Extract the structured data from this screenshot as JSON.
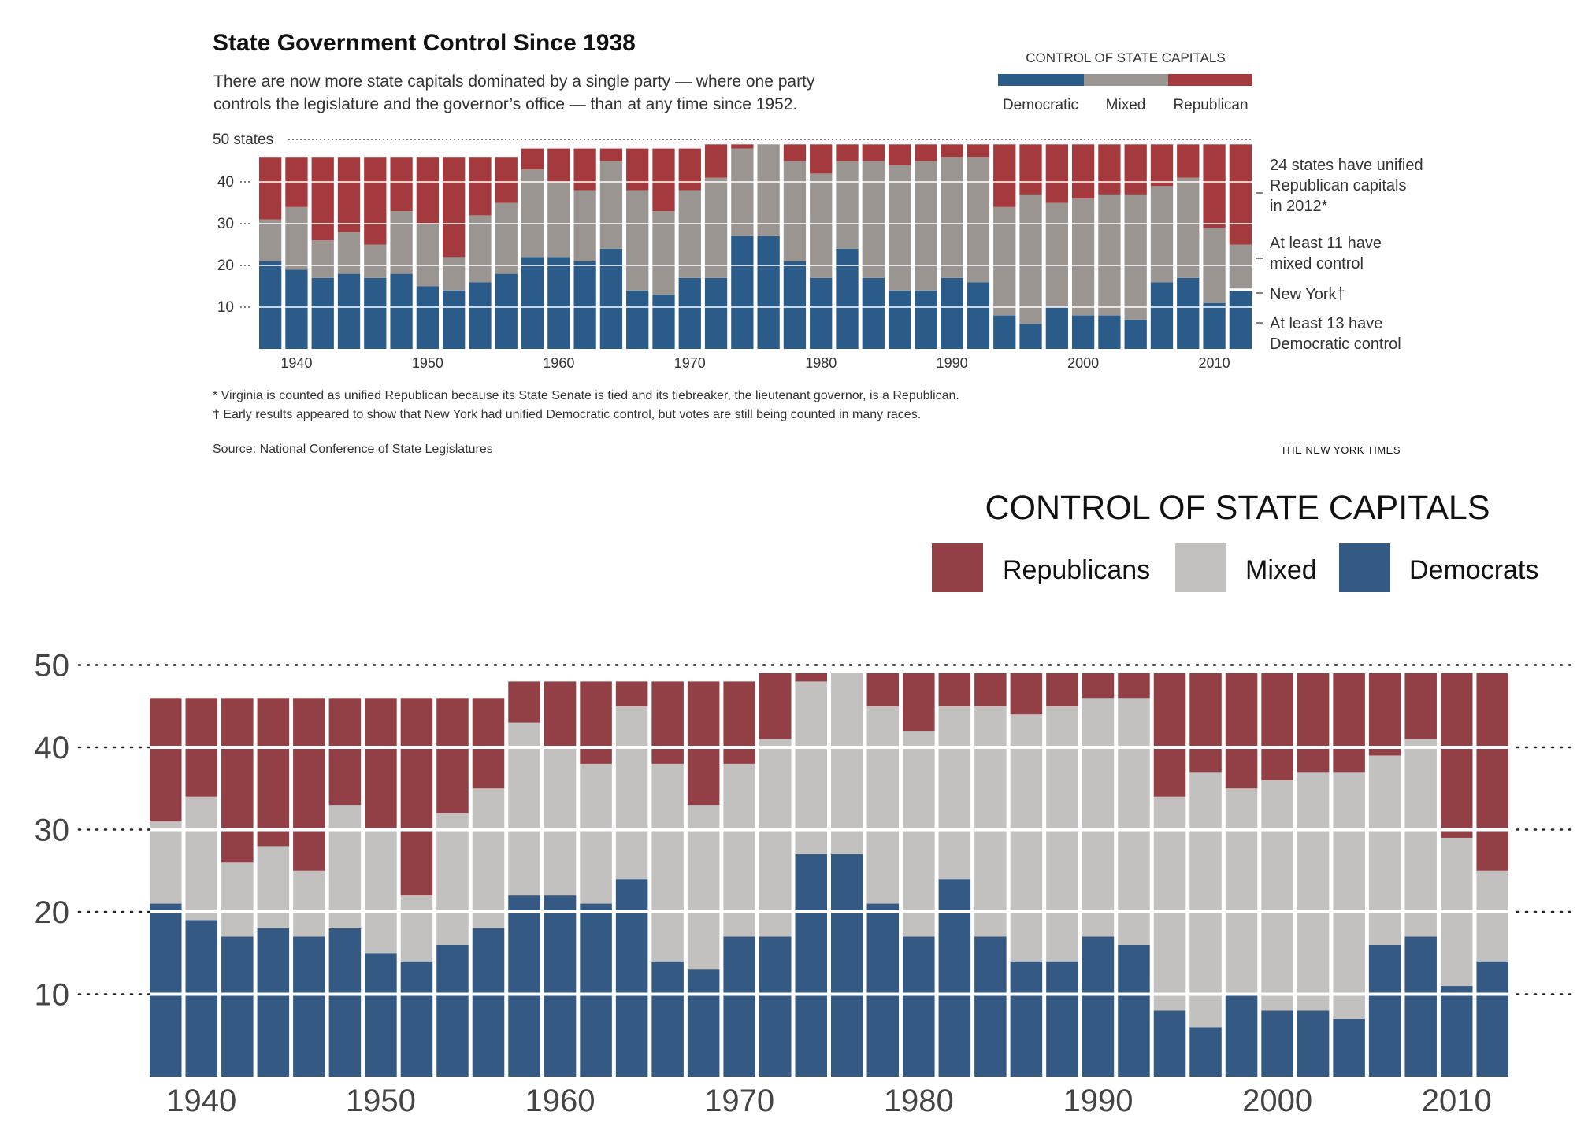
{
  "top_panel": {
    "title": "State Government Control Since 1938",
    "subtitle_line1": "There are now more state capitals dominated by a single party — where one party",
    "subtitle_line2": "controls the legislature and the governor’s office — than at any time since 1952.",
    "legend_title": "CONTROL OF STATE CAPITALS",
    "legend_labels": [
      "Democratic",
      "Mixed",
      "Republican"
    ],
    "y_top_label": "50 states",
    "annotations": [
      {
        "lines": [
          "24 states have unified",
          "Republican capitals",
          "in 2012*"
        ]
      },
      {
        "lines": [
          "At least 11 have",
          "mixed control"
        ]
      },
      {
        "lines": [
          "New York†"
        ]
      },
      {
        "lines": [
          "At least 13 have",
          "Democratic control"
        ]
      }
    ],
    "footnote1": "* Virginia is counted as unified Republican because its State Senate is tied and its tiebreaker, the lieutenant governor, is a Republican.",
    "footnote2": "† Early results appeared to show that New York had unified Democratic control, but votes are still being counted in many races.",
    "source": "Source: National Conference of State Legislatures",
    "credit": "THE NEW YORK TIMES",
    "colors": {
      "democratic": "#2b5b88",
      "mixed": "#9a9591",
      "republican": "#a53a3e",
      "new_york": "#ffffff"
    }
  },
  "bottom_panel": {
    "legend_title": "CONTROL OF STATE CAPITALS",
    "legend_labels": [
      "Republicans",
      "Mixed",
      "Democrats"
    ],
    "colors": {
      "republican": "#923f45",
      "mixed": "#c2c1c0",
      "democratic": "#345a84"
    }
  },
  "chart_data": {
    "type": "bar",
    "stacked": true,
    "x": [
      1938,
      1940,
      1942,
      1944,
      1946,
      1948,
      1950,
      1952,
      1954,
      1956,
      1958,
      1960,
      1962,
      1964,
      1966,
      1968,
      1970,
      1972,
      1974,
      1976,
      1978,
      1980,
      1982,
      1984,
      1986,
      1988,
      1990,
      1992,
      1994,
      1996,
      1998,
      2000,
      2002,
      2004,
      2006,
      2008,
      2010,
      2012
    ],
    "series": [
      {
        "name": "Democrats",
        "values": [
          21,
          19,
          17,
          18,
          17,
          18,
          15,
          14,
          16,
          18,
          22,
          22,
          21,
          24,
          14,
          13,
          17,
          17,
          27,
          27,
          21,
          17,
          24,
          17,
          14,
          14,
          17,
          16,
          8,
          6,
          10,
          8,
          8,
          7,
          16,
          17,
          11,
          14
        ]
      },
      {
        "name": "Mixed",
        "values": [
          10,
          15,
          9,
          10,
          8,
          15,
          15,
          8,
          16,
          17,
          21,
          18,
          17,
          21,
          24,
          20,
          21,
          24,
          21,
          22,
          24,
          25,
          21,
          28,
          30,
          31,
          29,
          30,
          26,
          31,
          25,
          28,
          29,
          30,
          23,
          24,
          18,
          11
        ]
      },
      {
        "name": "Republicans",
        "values": [
          15,
          12,
          20,
          18,
          21,
          13,
          16,
          24,
          14,
          11,
          5,
          8,
          10,
          3,
          10,
          15,
          10,
          8,
          1,
          0,
          4,
          7,
          4,
          4,
          5,
          4,
          3,
          3,
          15,
          12,
          14,
          13,
          12,
          12,
          10,
          8,
          20,
          24
        ]
      }
    ],
    "x_ticks": [
      1940,
      1950,
      1960,
      1970,
      1980,
      1990,
      2000,
      2010
    ],
    "y_ticks": [
      10,
      20,
      30,
      40,
      50
    ],
    "ylim": [
      0,
      50
    ],
    "grid": true,
    "legend_position": "top-right"
  }
}
